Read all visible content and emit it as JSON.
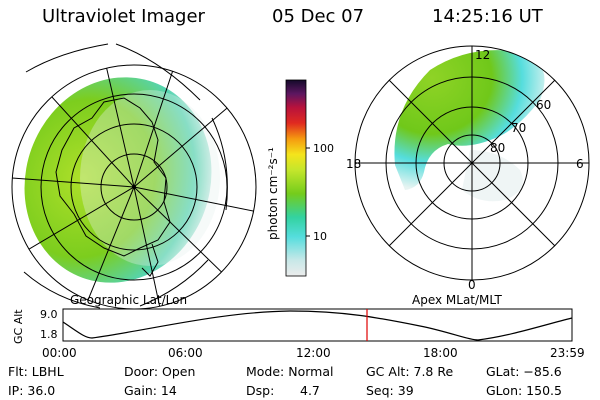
{
  "header": {
    "instrument": "Ultraviolet Imager",
    "date": "05 Dec 07",
    "time": "14:25:16 UT"
  },
  "left_panel": {
    "caption": "Geographic Lat/Lon"
  },
  "right_panel": {
    "caption": "Apex MLat/MLT",
    "mlt_labels": [
      "12",
      "18",
      "6",
      "0"
    ],
    "mlat_labels": [
      "60",
      "70",
      "80"
    ]
  },
  "colorbar": {
    "unit_label": "photon cm⁻²s⁻¹",
    "ticks": [
      "100",
      "10"
    ]
  },
  "timeline": {
    "ylabel": "GC Alt",
    "yticks": [
      "9.0",
      "1.8"
    ],
    "xticks": [
      "00:00",
      "06:00",
      "12:00",
      "18:00",
      "23:59"
    ],
    "current_time": "14:25"
  },
  "footer": {
    "flt": "Flt: LBHL",
    "ip": "IP: 36.0",
    "door": "Door: Open",
    "gain": "Gain: 14",
    "mode": "Mode: Normal",
    "dsp_label": "Dsp:",
    "dsp_value": "4.7",
    "gc_alt": "GC Alt: 7.8 Re",
    "seq": "Seq: 39",
    "glat": "GLat: −85.6",
    "glon": "GLon: 150.5"
  },
  "colors": {
    "background": "#ffffff",
    "foreground": "#000000",
    "time_marker": "#e00000",
    "emission_green": "#7ccd1e",
    "emission_cyan": "#55dddd"
  }
}
